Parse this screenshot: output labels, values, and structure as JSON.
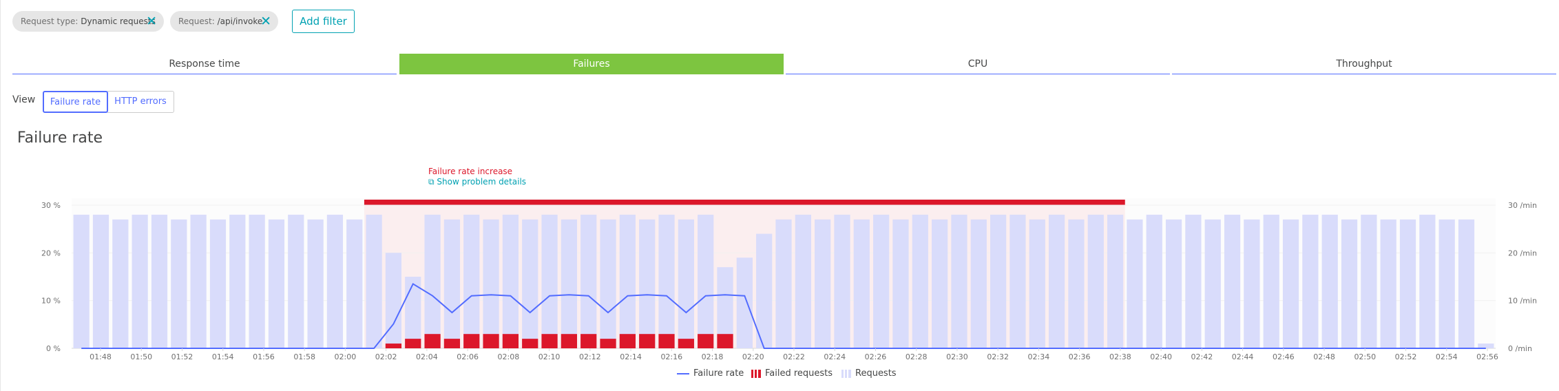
{
  "filters": [
    {
      "key": "Request type:",
      "value": "Dynamic requests"
    },
    {
      "key": "Request:",
      "value": "/api/invoke"
    }
  ],
  "add_filter_label": "Add filter",
  "tabs": [
    {
      "label": "Response time",
      "active": false
    },
    {
      "label": "Failures",
      "active": true
    },
    {
      "label": "CPU",
      "active": false
    },
    {
      "label": "Throughput",
      "active": false
    }
  ],
  "view": {
    "label": "View",
    "options": [
      "Failure rate",
      "HTTP errors"
    ],
    "selected": "Failure rate"
  },
  "section_title": "Failure rate",
  "problem": {
    "label": "Failure rate increase",
    "link": "Show problem details"
  },
  "colors": {
    "accent": "#526cff",
    "active_tab": "#7dc540",
    "failure": "#dc172a",
    "requests": "#d9dcfb",
    "teal": "#00a1b2"
  },
  "chart_data": {
    "type": "bar",
    "left_axis": {
      "ticks": [
        "0 %",
        "10 %",
        "20 %",
        "30 %"
      ],
      "max": 30
    },
    "right_axis": {
      "ticks": [
        "0 /min",
        "10 /min",
        "20 /min",
        "30 /min"
      ],
      "max": 30
    },
    "x_tick_labels": [
      "01:48",
      "01:50",
      "01:52",
      "01:54",
      "01:56",
      "01:58",
      "02:00",
      "02:02",
      "02:04",
      "02:06",
      "02:08",
      "02:10",
      "02:12",
      "02:14",
      "02:16",
      "02:18",
      "02:20",
      "02:22",
      "02:24",
      "02:26",
      "02:28",
      "02:30",
      "02:32",
      "02:34",
      "02:36",
      "02:38",
      "02:40",
      "02:42",
      "02:44",
      "02:46",
      "02:48",
      "02:50",
      "02:52",
      "02:54",
      "02:56"
    ],
    "requests": [
      28,
      28,
      27,
      28,
      28,
      27,
      28,
      27,
      28,
      28,
      27,
      28,
      27,
      28,
      27,
      28,
      20,
      15,
      28,
      27,
      28,
      27,
      28,
      27,
      28,
      27,
      28,
      27,
      28,
      27,
      28,
      27,
      28,
      17,
      19,
      24,
      27,
      28,
      27,
      28,
      27,
      28,
      27,
      28,
      27,
      28,
      27,
      28,
      28,
      27,
      28,
      27,
      28,
      28,
      27,
      28,
      27,
      28,
      27,
      28,
      27,
      28,
      27,
      28,
      28,
      27,
      28,
      27,
      27,
      28,
      27,
      27,
      1
    ],
    "failed_requests": [
      0,
      0,
      0,
      0,
      0,
      0,
      0,
      0,
      0,
      0,
      0,
      0,
      0,
      0,
      0,
      0,
      1,
      2,
      3,
      2,
      3,
      3,
      3,
      2,
      3,
      3,
      3,
      2,
      3,
      3,
      3,
      2,
      3,
      3,
      0,
      0,
      0,
      0,
      0,
      0,
      0,
      0,
      0,
      0,
      0,
      0,
      0,
      0,
      0,
      0,
      0,
      0,
      0,
      0,
      0,
      0,
      0,
      0,
      0,
      0,
      0,
      0,
      0,
      0,
      0,
      0,
      0,
      0,
      0,
      0,
      0,
      0,
      0
    ],
    "failure_rate": [
      0,
      0,
      0,
      0,
      0,
      0,
      0,
      0,
      0,
      0,
      0,
      0,
      0,
      0,
      0,
      0,
      5.1,
      13.5,
      11,
      7.5,
      11,
      11.2,
      11,
      7.5,
      11,
      11.2,
      11,
      7.5,
      11,
      11.2,
      11,
      7.5,
      11,
      11.2,
      11,
      0,
      0,
      0,
      0,
      0,
      0,
      0,
      0,
      0,
      0,
      0,
      0,
      0,
      0,
      0,
      0,
      0,
      0,
      0,
      0,
      0,
      0,
      0,
      0,
      0,
      0,
      0,
      0,
      0,
      0,
      0,
      0,
      0,
      0,
      0,
      0,
      0,
      0
    ],
    "problem_range": [
      "02:02",
      "02:41"
    ],
    "legend": [
      "Failure rate",
      "Failed requests",
      "Requests"
    ]
  }
}
